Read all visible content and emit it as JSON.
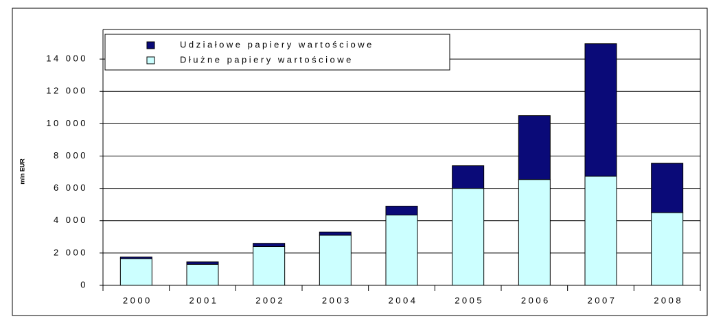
{
  "chart_data": {
    "type": "bar",
    "stacked": true,
    "y_label": "mln EUR",
    "categories": [
      "2000",
      "2001",
      "2002",
      "2003",
      "2004",
      "2005",
      "2006",
      "2007",
      "2008"
    ],
    "series": [
      {
        "name": "Dłużne papiery wartościowe",
        "color": "#ccffff",
        "values": [
          1650,
          1300,
          2400,
          3100,
          4350,
          6000,
          6550,
          6750,
          4500
        ]
      },
      {
        "name": "Udziałowe papiery wartościowe",
        "color": "#0a0a78",
        "values": [
          100,
          150,
          200,
          200,
          550,
          1400,
          3950,
          8200,
          3050
        ]
      }
    ],
    "ylim": [
      0,
      16000
    ],
    "yticks": [
      0,
      {
        "value": 2000,
        "label": "2 000"
      },
      {
        "value": 4000,
        "label": "4 000"
      },
      {
        "value": 6000,
        "label": "6 000"
      },
      {
        "value": 8000,
        "label": "8 000"
      },
      {
        "value": 10000,
        "label": "10 000"
      },
      {
        "value": 12000,
        "label": "12 000"
      },
      {
        "value": 14000,
        "label": "14 000"
      }
    ],
    "grid": true
  }
}
